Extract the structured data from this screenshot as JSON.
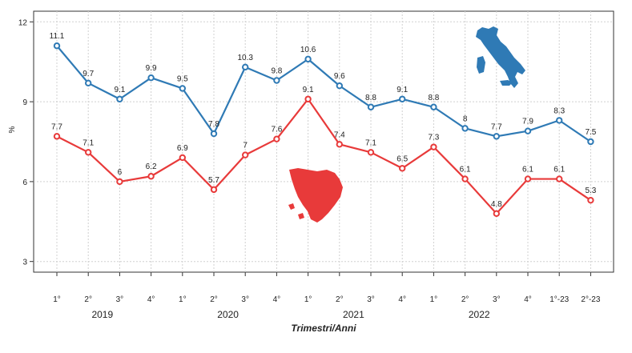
{
  "chart_data": {
    "type": "line",
    "title": "",
    "xlabel": "Trimestri/Anni",
    "ylabel": "%",
    "ylim": [
      2.6,
      12.4
    ],
    "yticks": [
      3,
      6,
      9,
      12
    ],
    "grid": true,
    "categories": [
      "1°",
      "2°",
      "3°",
      "4°",
      "1°",
      "2°",
      "3°",
      "4°",
      "1°",
      "2°",
      "3°",
      "4°",
      "1°",
      "2°",
      "3°",
      "4°",
      "1°-23",
      "2°-23"
    ],
    "year_groups": [
      {
        "label": "2019",
        "from": 0,
        "to": 3
      },
      {
        "label": "2020",
        "from": 4,
        "to": 7
      },
      {
        "label": "2021",
        "from": 8,
        "to": 11
      },
      {
        "label": "2022",
        "from": 12,
        "to": 15
      }
    ],
    "series": [
      {
        "color": "#2f7ab5",
        "values": [
          11.1,
          9.7,
          9.1,
          9.9,
          9.5,
          7.8,
          10.3,
          9.8,
          10.6,
          9.6,
          8.8,
          9.1,
          8.8,
          8.0,
          7.7,
          7.9,
          8.3,
          7.5
        ],
        "labels": [
          "11.1",
          "9.7",
          "9.1",
          "9.9",
          "9.5",
          "7.8",
          "10.3",
          "9.8",
          "10.6",
          "9.6",
          "8.8",
          "9.1",
          "8.8",
          "8",
          "7.7",
          "7.9",
          "8.3",
          "7.5"
        ]
      },
      {
        "color": "#e83a3a",
        "values": [
          7.7,
          7.1,
          6.0,
          6.2,
          6.9,
          5.7,
          7.0,
          7.6,
          9.1,
          7.4,
          7.1,
          6.5,
          7.3,
          6.1,
          4.8,
          6.1,
          6.1,
          5.3
        ],
        "labels": [
          "7.7",
          "7.1",
          "6",
          "6.2",
          "6.9",
          "5.7",
          "7",
          "7.6",
          "9.1",
          "7.4",
          "7.1",
          "6.5",
          "7.3",
          "6.1",
          "4.8",
          "6.1",
          "6.1",
          "5.3"
        ]
      }
    ],
    "decorations": {
      "italy_map_color": "#2f7ab5",
      "tuscany_map_color": "#e83a3a"
    }
  }
}
